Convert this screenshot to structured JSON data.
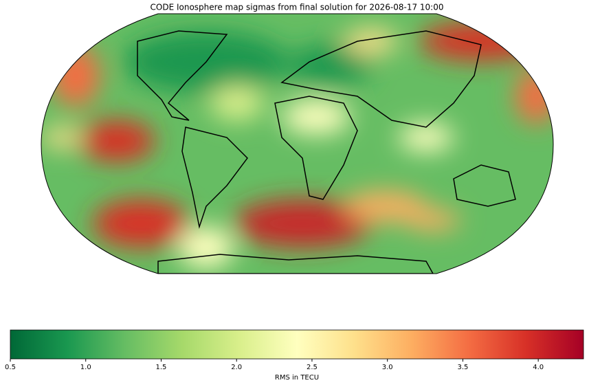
{
  "chart_data": {
    "type": "map",
    "title": "CODE Ionosphere map sigmas from final solution for 2026-08-17 10:00",
    "colorbar": {
      "label": "RMS in TECU",
      "lim": [
        0.5,
        4.3
      ],
      "ticks": [
        0.5,
        1.0,
        1.5,
        2.0,
        2.5,
        3.0,
        3.5,
        4.0
      ],
      "colormap": [
        "#006837",
        "#1a9850",
        "#66bd63",
        "#a6d96a",
        "#d9ef8b",
        "#ffffbf",
        "#fee08b",
        "#fdae61",
        "#f46d43",
        "#d73027",
        "#a50026"
      ]
    }
  }
}
